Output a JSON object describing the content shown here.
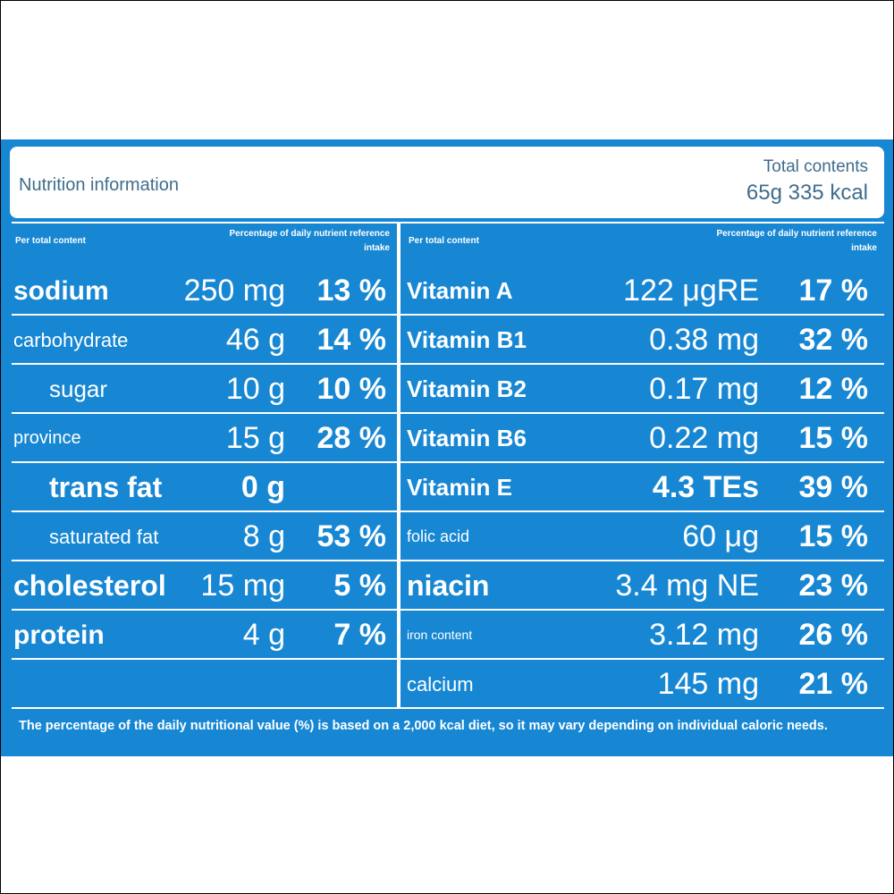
{
  "header": {
    "title": "Nutrition information",
    "total_label": "Total contents",
    "total_value": "65g 335 kcal"
  },
  "left": {
    "col_headers": [
      "Per total content",
      "Percentage of daily nutrient reference intake"
    ],
    "rows": [
      [
        "sodium",
        "250 mg",
        "13 %"
      ],
      [
        "carbohydrate",
        "46 g",
        "14 %"
      ],
      [
        "sugar",
        "10 g",
        "10 %"
      ],
      [
        "province",
        "15 g",
        "28 %"
      ],
      [
        "trans fat",
        "0 g"
      ],
      [
        "saturated fat",
        "8 g",
        "53 %"
      ],
      [
        "cholesterol",
        "15 mg",
        "5 %"
      ],
      [
        "protein",
        "4 g",
        "7 %"
      ]
    ]
  },
  "right": {
    "col_headers": [
      "Per total content",
      "Percentage of daily nutrient reference intake"
    ],
    "rows": [
      [
        "Vitamin A",
        "122 μgRE",
        "17 %"
      ],
      [
        "Vitamin B1",
        "0.38 mg",
        "32 %"
      ],
      [
        "Vitamin B2",
        "0.17 mg",
        "12 %"
      ],
      [
        "Vitamin B6",
        "0.22 mg",
        "15 %"
      ],
      [
        "Vitamin E",
        "4.3 TEs",
        "39 %"
      ],
      [
        "folic acid",
        "60 μg",
        "15 %"
      ],
      [
        "niacin",
        "3.4 mg NE",
        "23 %"
      ],
      [
        "iron content",
        "3.12 mg",
        "26 %"
      ],
      [
        "calcium",
        "145 mg",
        "21 %"
      ]
    ]
  },
  "footnote": "The percentage of the daily nutritional value (%) is based on a 2,000 kcal diet, so it may vary depending on individual caloric needs."
}
